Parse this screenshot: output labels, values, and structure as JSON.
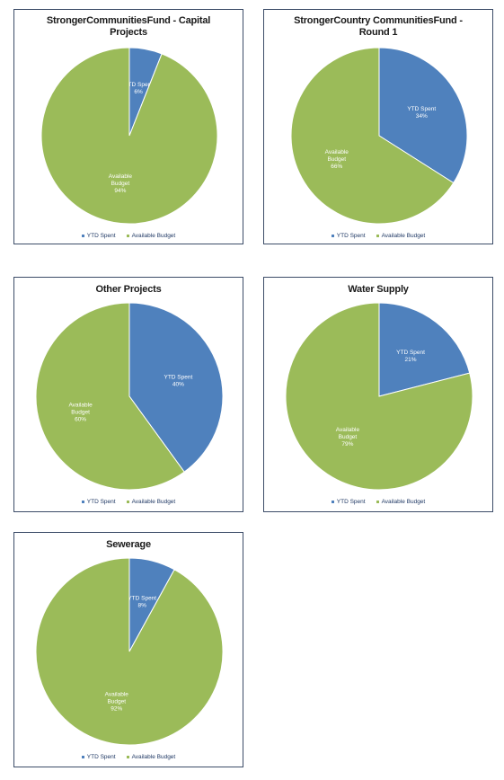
{
  "colors": {
    "ytd_spent": "#4f81bd",
    "available_budget": "#9bbb59",
    "slice_border": "#ffffff"
  },
  "chart_data": [
    {
      "type": "pie",
      "title_lines": [
        "StrongerCommunitiesFund - Capital",
        "Projects"
      ],
      "legend": [
        "YTD Spent",
        "Available Budget"
      ],
      "slices": [
        {
          "name": "YTD Spent",
          "value": 6,
          "label_lines": [
            "YTD Spent",
            "6%"
          ]
        },
        {
          "name": "Available Budget",
          "value": 94,
          "label_lines": [
            "Available",
            "Budget",
            "94%"
          ]
        }
      ]
    },
    {
      "type": "pie",
      "title_lines": [
        "StrongerCountry CommunitiesFund -",
        "Round 1"
      ],
      "legend": [
        "YTD Spent",
        "Available Budget"
      ],
      "slices": [
        {
          "name": "YTD Spent",
          "value": 34,
          "label_lines": [
            "YTD Spent",
            "34%"
          ]
        },
        {
          "name": "Available Budget",
          "value": 66,
          "label_lines": [
            "Available",
            "Budget",
            "66%"
          ]
        }
      ]
    },
    {
      "type": "pie",
      "title_lines": [
        "Other Projects"
      ],
      "legend": [
        "YTD Spent",
        "Available Budget"
      ],
      "slices": [
        {
          "name": "YTD Spent",
          "value": 40,
          "label_lines": [
            "YTD Spent",
            "40%"
          ]
        },
        {
          "name": "Available Budget",
          "value": 60,
          "label_lines": [
            "Available",
            "Budget",
            "60%"
          ]
        }
      ]
    },
    {
      "type": "pie",
      "title_lines": [
        "Water Supply"
      ],
      "legend": [
        "YTD Spent",
        "Available Budget"
      ],
      "slices": [
        {
          "name": "YTD Spent",
          "value": 21,
          "label_lines": [
            "YTD Spent",
            "21%"
          ]
        },
        {
          "name": "Available Budget",
          "value": 79,
          "label_lines": [
            "Available",
            "Budget",
            "79%"
          ]
        }
      ]
    },
    {
      "type": "pie",
      "title_lines": [
        "Sewerage"
      ],
      "legend": [
        "YTD Spent",
        "Available Budget"
      ],
      "slices": [
        {
          "name": "YTD Spent",
          "value": 8,
          "label_lines": [
            "YTD Spent",
            "8%"
          ]
        },
        {
          "name": "Available Budget",
          "value": 92,
          "label_lines": [
            "Available",
            "Budget",
            "92%"
          ]
        }
      ]
    }
  ]
}
